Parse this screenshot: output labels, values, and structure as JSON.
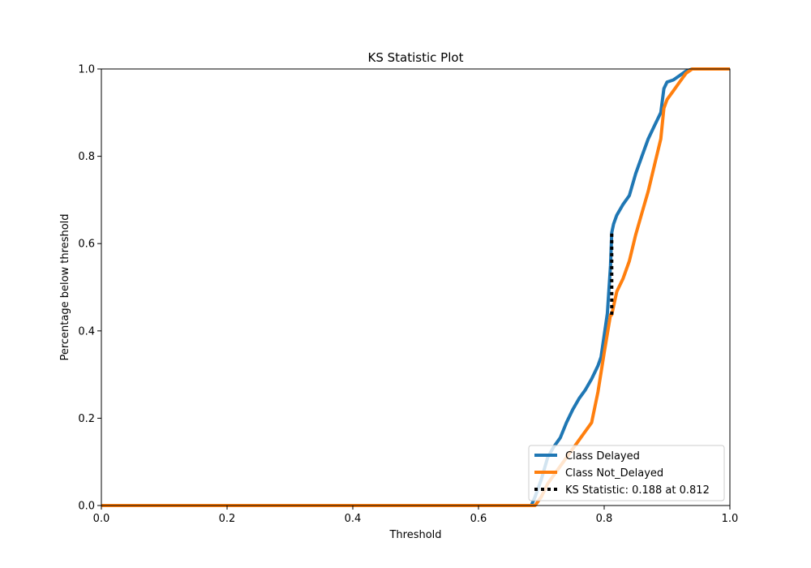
{
  "chart_data": {
    "type": "line",
    "title": "KS Statistic Plot",
    "xlabel": "Threshold",
    "ylabel": "Percentage below threshold",
    "xlim": [
      0.0,
      1.0
    ],
    "ylim": [
      0.0,
      1.0
    ],
    "xticks": [
      "0.0",
      "0.2",
      "0.4",
      "0.6",
      "0.8",
      "1.0"
    ],
    "yticks": [
      "0.0",
      "0.2",
      "0.4",
      "0.6",
      "0.8",
      "1.0"
    ],
    "grid": false,
    "legend_position": "lower-right",
    "series": [
      {
        "name": "Class Delayed",
        "color": "#1f77b4",
        "points": [
          [
            0.0,
            0.0
          ],
          [
            0.684,
            0.0
          ],
          [
            0.69,
            0.02
          ],
          [
            0.7,
            0.06
          ],
          [
            0.71,
            0.11
          ],
          [
            0.72,
            0.135
          ],
          [
            0.73,
            0.155
          ],
          [
            0.74,
            0.19
          ],
          [
            0.75,
            0.22
          ],
          [
            0.76,
            0.245
          ],
          [
            0.77,
            0.265
          ],
          [
            0.78,
            0.29
          ],
          [
            0.79,
            0.32
          ],
          [
            0.795,
            0.34
          ],
          [
            0.8,
            0.39
          ],
          [
            0.805,
            0.44
          ],
          [
            0.81,
            0.55
          ],
          [
            0.812,
            0.625
          ],
          [
            0.815,
            0.645
          ],
          [
            0.82,
            0.665
          ],
          [
            0.83,
            0.69
          ],
          [
            0.84,
            0.71
          ],
          [
            0.85,
            0.76
          ],
          [
            0.86,
            0.8
          ],
          [
            0.87,
            0.84
          ],
          [
            0.88,
            0.87
          ],
          [
            0.89,
            0.9
          ],
          [
            0.895,
            0.955
          ],
          [
            0.9,
            0.97
          ],
          [
            0.91,
            0.975
          ],
          [
            0.92,
            0.985
          ],
          [
            0.93,
            0.995
          ],
          [
            0.94,
            1.0
          ],
          [
            1.0,
            1.0
          ]
        ]
      },
      {
        "name": "Class Not_Delayed",
        "color": "#ff7f0e",
        "points": [
          [
            0.0,
            0.0
          ],
          [
            0.69,
            0.0
          ],
          [
            0.7,
            0.02
          ],
          [
            0.71,
            0.05
          ],
          [
            0.72,
            0.07
          ],
          [
            0.73,
            0.09
          ],
          [
            0.74,
            0.11
          ],
          [
            0.75,
            0.13
          ],
          [
            0.76,
            0.15
          ],
          [
            0.77,
            0.17
          ],
          [
            0.78,
            0.19
          ],
          [
            0.79,
            0.26
          ],
          [
            0.8,
            0.35
          ],
          [
            0.81,
            0.437
          ],
          [
            0.812,
            0.437
          ],
          [
            0.82,
            0.49
          ],
          [
            0.83,
            0.52
          ],
          [
            0.84,
            0.56
          ],
          [
            0.85,
            0.62
          ],
          [
            0.86,
            0.67
          ],
          [
            0.87,
            0.72
          ],
          [
            0.88,
            0.78
          ],
          [
            0.89,
            0.84
          ],
          [
            0.895,
            0.91
          ],
          [
            0.9,
            0.93
          ],
          [
            0.91,
            0.95
          ],
          [
            0.92,
            0.97
          ],
          [
            0.93,
            0.99
          ],
          [
            0.94,
            1.0
          ],
          [
            1.0,
            1.0
          ]
        ]
      }
    ],
    "ks_statistic": {
      "label": "KS Statistic: 0.188 at 0.812",
      "x": 0.812,
      "y_low": 0.437,
      "y_high": 0.625,
      "color": "#000000"
    }
  }
}
